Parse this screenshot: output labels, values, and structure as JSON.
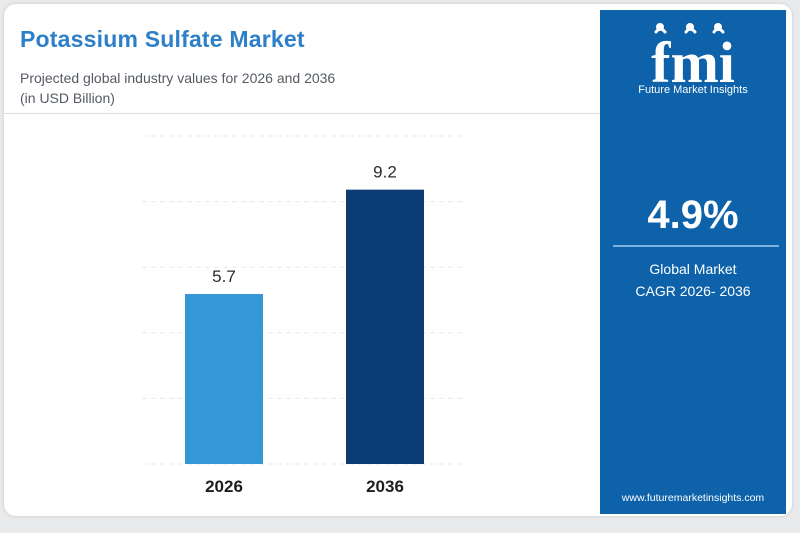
{
  "header": {
    "title": "Potassium Sulfate Market",
    "subtitle_line1": "Projected global industry values for 2026 and 2036",
    "subtitle_line2": "(in USD Billion)"
  },
  "chart_data": {
    "type": "bar",
    "categories": [
      "2026",
      "2036"
    ],
    "values": [
      5.7,
      9.2
    ],
    "data_labels": [
      "5.7",
      "9.2"
    ],
    "bar_colors": [
      "#3596d8",
      "#0a3b72"
    ],
    "ylim": [
      0,
      11
    ],
    "grid": true,
    "title": "Potassium Sulfate Market",
    "xlabel": "",
    "ylabel": ""
  },
  "panel": {
    "logo_text": "fmi",
    "logo_subtitle": "Future Market Insights",
    "cagr_value": "4.9%",
    "cagr_label_line1": "Global Market",
    "cagr_label_line2": "CAGR 2026- 2036",
    "website": "www.futuremarketinsights.com"
  },
  "colors": {
    "title": "#2c7fc8",
    "panel_bg": "#0d62aa",
    "footer": [
      "#7cc04a",
      "#f0862a",
      "#8a4fb8"
    ]
  }
}
